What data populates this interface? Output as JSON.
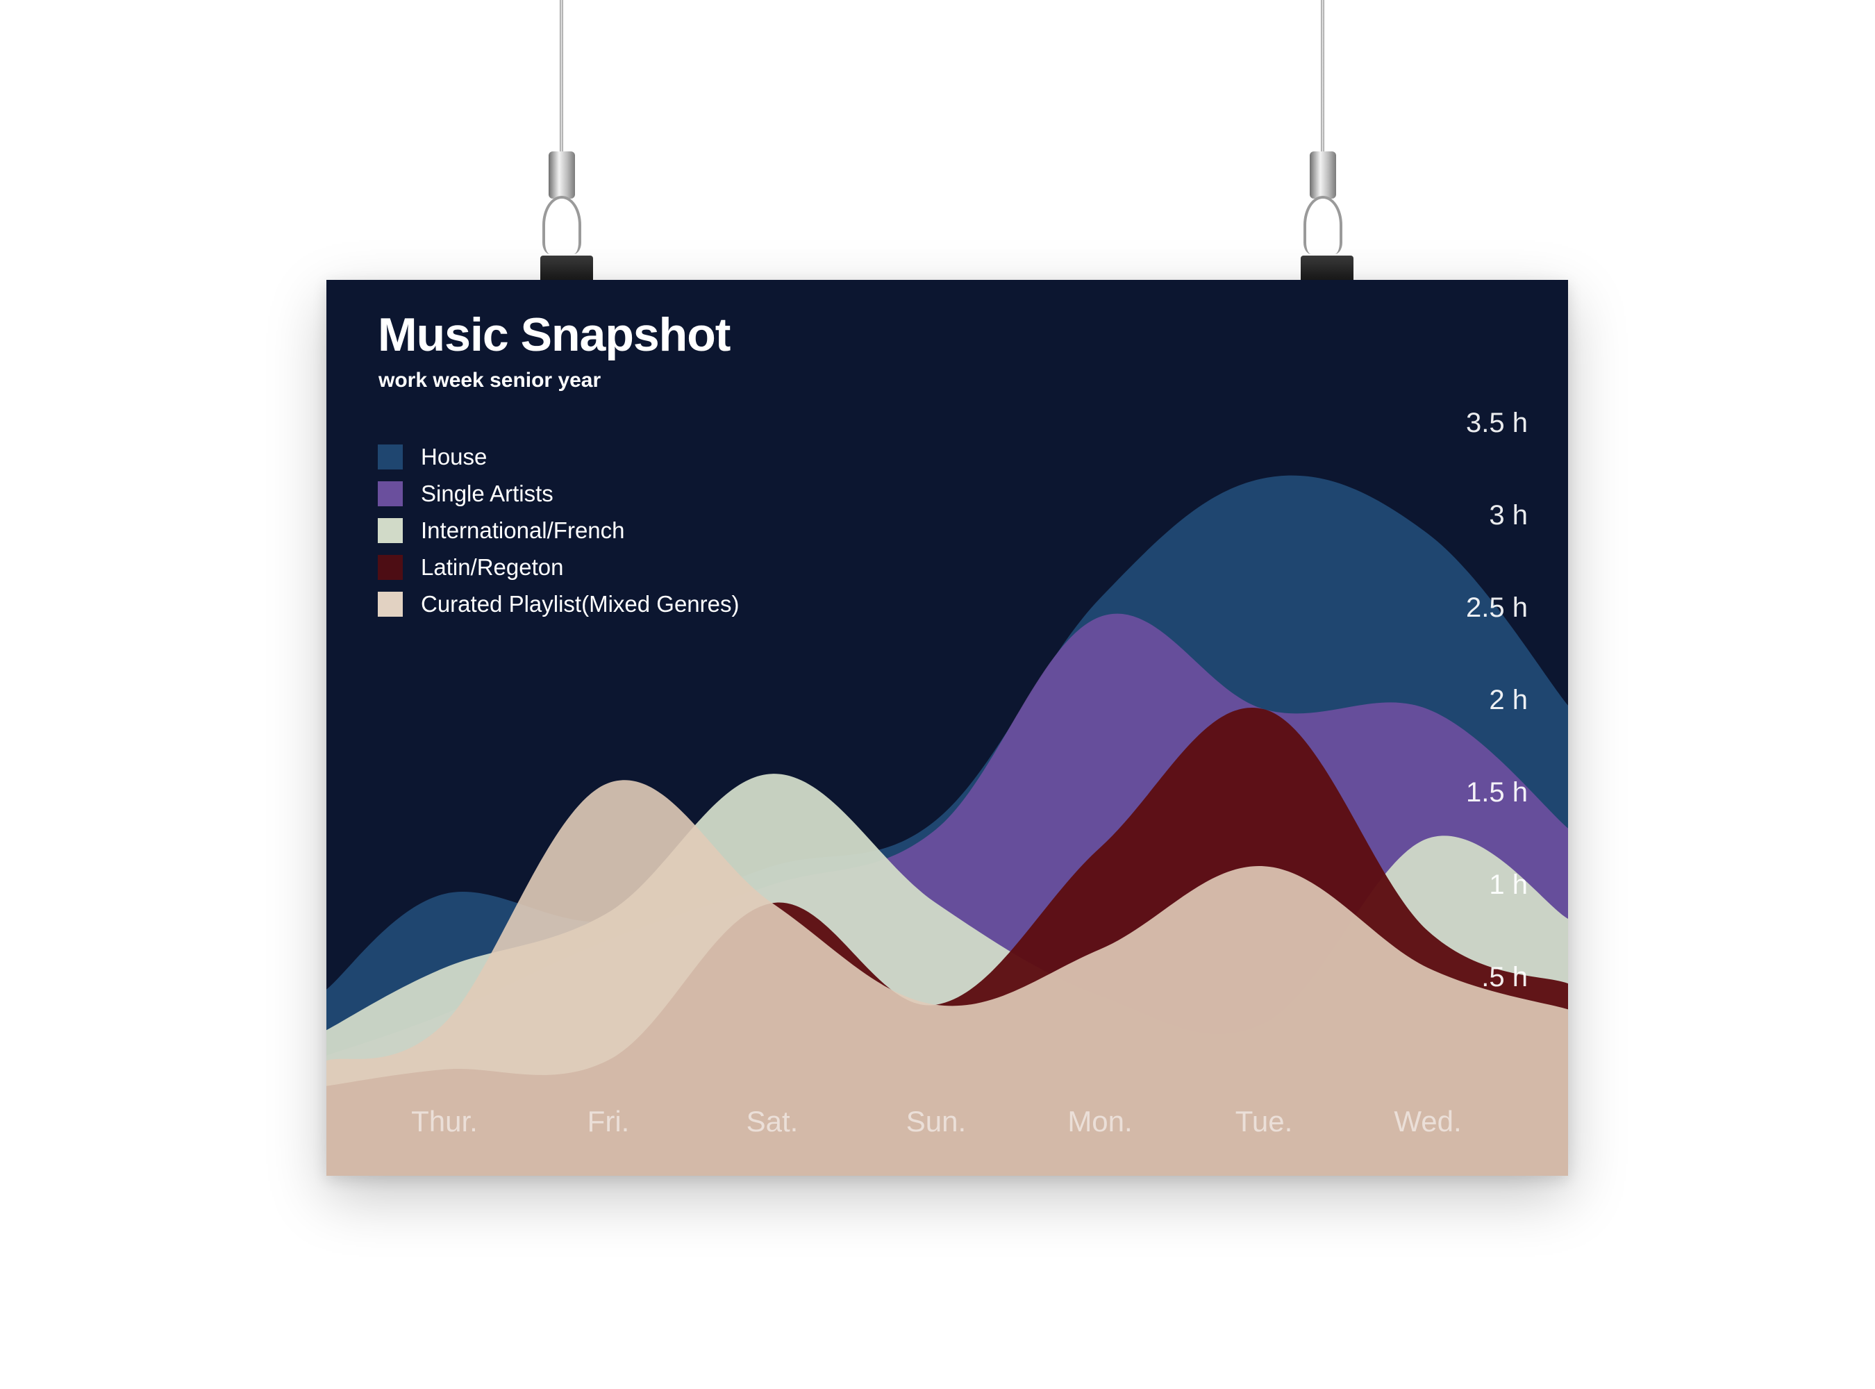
{
  "poster": {
    "title": "Music Snapshot",
    "subtitle": "work week senior year",
    "background": "#0c1630"
  },
  "chart_data": {
    "type": "area",
    "title": "Music Snapshot",
    "subtitle": "work week senior year",
    "categories": [
      "Thur.",
      "Fri.",
      "Sat.",
      "Sun.",
      "Mon.",
      "Tue.",
      "Wed."
    ],
    "y_ticks": [
      ".5 h",
      "1 h",
      "1.5 h",
      "2 h",
      "2.5 h",
      "3 h",
      "3.5 h"
    ],
    "y_tick_values": [
      0.5,
      1,
      1.5,
      2,
      2.5,
      3,
      3.5
    ],
    "ylim": [
      0,
      3.5
    ],
    "y_axis_side": "right",
    "legend_position": "top-left",
    "grid": false,
    "series": [
      {
        "name": "House",
        "color": "#1f4670",
        "values": [
          1.15,
          1.0,
          1.3,
          1.55,
          2.75,
          3.4,
          3.1
        ]
      },
      {
        "name": "Single Artists",
        "color": "#6a4f9d",
        "values": [
          0.5,
          0.9,
          1.2,
          1.5,
          2.65,
          2.15,
          2.15
        ]
      },
      {
        "name": "International/French",
        "color": "#d1dac8",
        "values": [
          0.75,
          1.05,
          1.8,
          1.1,
          0.6,
          0.45,
          1.45
        ]
      },
      {
        "name": "Latin/Regeton",
        "color": "#5d0e13",
        "values": [
          0.2,
          0.25,
          1.1,
          0.55,
          1.4,
          2.15,
          0.95
        ]
      },
      {
        "name": "Curated Playlist(Mixed Genres)",
        "color": "#e0cbb8",
        "values": [
          0.45,
          1.75,
          1.1,
          0.55,
          0.85,
          1.3,
          0.75
        ]
      }
    ]
  }
}
